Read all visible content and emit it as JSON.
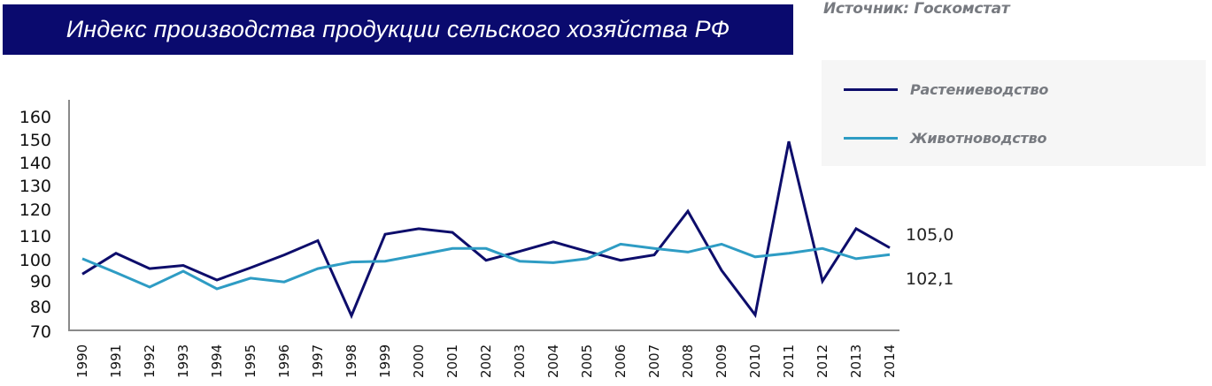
{
  "header": {
    "title": "Индекс производства продукции сельского хозяйства РФ",
    "title_bg": "#0a0a6e"
  },
  "source": "Источник: Госкомстат",
  "legend": {
    "items": [
      {
        "label": "Растениеводство",
        "color": "#0d0d6b"
      },
      {
        "label": "Животноводство",
        "color": "#2e9cc4"
      }
    ]
  },
  "chart_data": {
    "type": "line",
    "title": "Индекс производства продукции сельского хозяйства РФ",
    "xlabel": "",
    "ylabel": "",
    "ylim": [
      70,
      160
    ],
    "y_ticks": [
      160,
      150,
      140,
      130,
      120,
      110,
      100,
      90,
      80,
      70
    ],
    "grid": false,
    "legend_position": "right",
    "categories": [
      "1990",
      "1991",
      "1992",
      "1993",
      "1994",
      "1995",
      "1996",
      "1997",
      "1998",
      "1999",
      "2000",
      "2001",
      "2002",
      "2003",
      "2004",
      "2005",
      "2006",
      "2007",
      "2008",
      "2009",
      "2010",
      "2011",
      "2012",
      "2013",
      "2014"
    ],
    "series": [
      {
        "name": "Растениеводство",
        "color": "#0d0d6b",
        "values": [
          93.2,
          102.7,
          95.8,
          97.3,
          90.4,
          96.2,
          102.0,
          108.0,
          76.3,
          110.6,
          112.7,
          111.3,
          99.7,
          103.5,
          107.5,
          103.5,
          99.7,
          102.0,
          119.3,
          95.0,
          76.6,
          149.2,
          89.9,
          112.7,
          105.0
        ]
      },
      {
        "name": "Животноводство",
        "color": "#2e9cc4",
        "values": [
          100.4,
          93.9,
          87.6,
          94.6,
          86.9,
          91.3,
          89.6,
          95.8,
          98.9,
          99.3,
          102.0,
          104.7,
          104.7,
          99.3,
          98.6,
          100.4,
          106.5,
          104.7,
          103.2,
          106.5,
          101.2,
          102.7,
          104.7,
          100.4,
          102.1
        ]
      }
    ],
    "annotations": [
      {
        "text": "105,0",
        "series": "Растениеводство",
        "at": "2014"
      },
      {
        "text": "102,1",
        "series": "Животноводство",
        "at": "2014"
      }
    ]
  }
}
